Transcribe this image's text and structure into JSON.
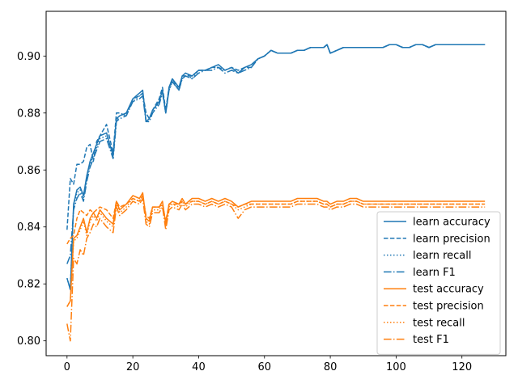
{
  "chart_data": {
    "type": "line",
    "title": "",
    "xlabel": "",
    "ylabel": "",
    "xlim": [
      -6.35,
      133.35
    ],
    "ylim": [
      0.7948,
      0.9157
    ],
    "xticks": [
      0,
      20,
      40,
      60,
      80,
      100,
      120
    ],
    "yticks": [
      0.8,
      0.82,
      0.84,
      0.86,
      0.88,
      0.9
    ],
    "xtick_labels": [
      "0",
      "20",
      "40",
      "60",
      "80",
      "100",
      "120"
    ],
    "ytick_labels": [
      "0.80",
      "0.82",
      "0.84",
      "0.86",
      "0.88",
      "0.90"
    ],
    "grid": false,
    "legend_position": "lower right",
    "x": [
      0,
      1,
      2,
      3,
      4,
      5,
      6,
      7,
      8,
      9,
      10,
      12,
      14,
      15,
      16,
      18,
      20,
      22,
      23,
      24,
      25,
      26,
      28,
      29,
      30,
      31,
      32,
      34,
      35,
      36,
      38,
      40,
      42,
      44,
      46,
      48,
      50,
      52,
      54,
      56,
      58,
      60,
      62,
      64,
      66,
      68,
      70,
      72,
      74,
      76,
      78,
      79,
      80,
      82,
      84,
      86,
      88,
      90,
      92,
      94,
      96,
      98,
      100,
      102,
      104,
      106,
      108,
      110,
      112,
      114,
      116,
      118,
      120,
      122,
      124,
      126,
      127
    ],
    "series": [
      {
        "name": "learn accuracy",
        "color": "#1f77b4",
        "dash": "solid",
        "values": [
          0.822,
          0.818,
          0.848,
          0.853,
          0.854,
          0.851,
          0.858,
          0.863,
          0.866,
          0.869,
          0.872,
          0.873,
          0.865,
          0.878,
          0.879,
          0.88,
          0.885,
          0.887,
          0.888,
          0.877,
          0.878,
          0.881,
          0.884,
          0.888,
          0.88,
          0.889,
          0.892,
          0.889,
          0.893,
          0.894,
          0.893,
          0.895,
          0.895,
          0.896,
          0.897,
          0.895,
          0.896,
          0.894,
          0.896,
          0.897,
          0.899,
          0.9,
          0.902,
          0.901,
          0.901,
          0.901,
          0.902,
          0.902,
          0.903,
          0.903,
          0.903,
          0.904,
          0.901,
          0.902,
          0.903,
          0.903,
          0.903,
          0.903,
          0.903,
          0.903,
          0.903,
          0.904,
          0.904,
          0.903,
          0.903,
          0.904,
          0.904,
          0.903,
          0.904,
          0.904,
          0.904,
          0.904,
          0.904,
          0.904,
          0.904,
          0.904,
          0.904
        ]
      },
      {
        "name": "learn precision",
        "color": "#1f77b4",
        "dash": "dashed",
        "values": [
          0.839,
          0.857,
          0.855,
          0.862,
          0.862,
          0.863,
          0.868,
          0.869,
          0.863,
          0.87,
          0.872,
          0.876,
          0.866,
          0.88,
          0.88,
          0.879,
          0.885,
          0.886,
          0.887,
          0.88,
          0.878,
          0.881,
          0.885,
          0.889,
          0.881,
          0.889,
          0.892,
          0.888,
          0.893,
          0.893,
          0.893,
          0.895,
          0.895,
          0.896,
          0.896,
          0.895,
          0.896,
          0.895,
          0.896,
          0.896,
          0.899,
          0.9,
          0.902,
          0.901,
          0.901,
          0.901,
          0.902,
          0.902,
          0.903,
          0.903,
          0.903,
          0.904,
          0.901,
          0.902,
          0.903,
          0.903,
          0.903,
          0.903,
          0.903,
          0.903,
          0.903,
          0.904,
          0.904,
          0.903,
          0.903,
          0.904,
          0.904,
          0.903,
          0.904,
          0.904,
          0.904,
          0.904,
          0.904,
          0.904,
          0.904,
          0.904,
          0.904
        ]
      },
      {
        "name": "learn recall",
        "color": "#1f77b4",
        "dash": "dotted",
        "values": [
          0.822,
          0.818,
          0.847,
          0.852,
          0.853,
          0.85,
          0.857,
          0.862,
          0.865,
          0.868,
          0.871,
          0.872,
          0.864,
          0.877,
          0.879,
          0.88,
          0.884,
          0.886,
          0.887,
          0.877,
          0.877,
          0.88,
          0.884,
          0.888,
          0.88,
          0.888,
          0.891,
          0.888,
          0.892,
          0.894,
          0.892,
          0.895,
          0.895,
          0.896,
          0.896,
          0.895,
          0.896,
          0.894,
          0.896,
          0.896,
          0.899,
          0.9,
          0.902,
          0.901,
          0.901,
          0.901,
          0.902,
          0.902,
          0.903,
          0.903,
          0.903,
          0.904,
          0.901,
          0.902,
          0.903,
          0.903,
          0.903,
          0.903,
          0.903,
          0.903,
          0.903,
          0.904,
          0.904,
          0.903,
          0.903,
          0.904,
          0.904,
          0.903,
          0.904,
          0.904,
          0.904,
          0.904,
          0.904,
          0.904,
          0.904,
          0.904,
          0.904
        ]
      },
      {
        "name": "learn F1",
        "color": "#1f77b4",
        "dash": "dashdot",
        "values": [
          0.827,
          0.83,
          0.846,
          0.85,
          0.852,
          0.849,
          0.856,
          0.861,
          0.864,
          0.867,
          0.87,
          0.871,
          0.864,
          0.877,
          0.878,
          0.879,
          0.884,
          0.885,
          0.886,
          0.877,
          0.877,
          0.88,
          0.883,
          0.887,
          0.88,
          0.888,
          0.891,
          0.888,
          0.892,
          0.893,
          0.892,
          0.894,
          0.895,
          0.895,
          0.896,
          0.894,
          0.895,
          0.894,
          0.895,
          0.896,
          0.899,
          0.9,
          0.902,
          0.901,
          0.901,
          0.901,
          0.902,
          0.902,
          0.903,
          0.903,
          0.903,
          0.904,
          0.901,
          0.902,
          0.903,
          0.903,
          0.903,
          0.903,
          0.903,
          0.903,
          0.903,
          0.904,
          0.904,
          0.903,
          0.903,
          0.904,
          0.904,
          0.903,
          0.904,
          0.904,
          0.904,
          0.904,
          0.904,
          0.904,
          0.904,
          0.904,
          0.904
        ]
      },
      {
        "name": "test accuracy",
        "color": "#ff7f0e",
        "dash": "solid",
        "values": [
          0.812,
          0.814,
          0.836,
          0.837,
          0.84,
          0.843,
          0.838,
          0.843,
          0.845,
          0.843,
          0.846,
          0.843,
          0.841,
          0.849,
          0.846,
          0.848,
          0.851,
          0.85,
          0.852,
          0.843,
          0.842,
          0.847,
          0.847,
          0.849,
          0.841,
          0.848,
          0.849,
          0.848,
          0.85,
          0.848,
          0.85,
          0.85,
          0.849,
          0.85,
          0.849,
          0.85,
          0.849,
          0.847,
          0.848,
          0.849,
          0.849,
          0.849,
          0.849,
          0.849,
          0.849,
          0.849,
          0.85,
          0.85,
          0.85,
          0.85,
          0.849,
          0.849,
          0.848,
          0.849,
          0.849,
          0.85,
          0.85,
          0.849,
          0.849,
          0.849,
          0.849,
          0.849,
          0.849,
          0.849,
          0.849,
          0.849,
          0.849,
          0.849,
          0.849,
          0.849,
          0.849,
          0.849,
          0.849,
          0.849,
          0.849,
          0.849,
          0.849
        ]
      },
      {
        "name": "test precision",
        "color": "#ff7f0e",
        "dash": "dashed",
        "values": [
          0.834,
          0.836,
          0.837,
          0.843,
          0.846,
          0.845,
          0.844,
          0.846,
          0.845,
          0.846,
          0.847,
          0.846,
          0.843,
          0.849,
          0.847,
          0.848,
          0.85,
          0.849,
          0.851,
          0.844,
          0.843,
          0.847,
          0.847,
          0.848,
          0.842,
          0.848,
          0.848,
          0.848,
          0.849,
          0.848,
          0.849,
          0.849,
          0.848,
          0.849,
          0.848,
          0.849,
          0.848,
          0.847,
          0.848,
          0.848,
          0.848,
          0.848,
          0.848,
          0.848,
          0.848,
          0.848,
          0.849,
          0.849,
          0.849,
          0.849,
          0.848,
          0.848,
          0.847,
          0.848,
          0.848,
          0.849,
          0.849,
          0.848,
          0.848,
          0.848,
          0.848,
          0.848,
          0.848,
          0.848,
          0.848,
          0.848,
          0.848,
          0.848,
          0.848,
          0.848,
          0.848,
          0.848,
          0.848,
          0.848,
          0.848,
          0.848,
          0.848
        ]
      },
      {
        "name": "test recall",
        "color": "#ff7f0e",
        "dash": "dotted",
        "values": [
          0.812,
          0.814,
          0.835,
          0.836,
          0.839,
          0.842,
          0.837,
          0.842,
          0.844,
          0.842,
          0.845,
          0.842,
          0.84,
          0.848,
          0.845,
          0.847,
          0.85,
          0.849,
          0.851,
          0.842,
          0.841,
          0.846,
          0.846,
          0.848,
          0.84,
          0.847,
          0.848,
          0.847,
          0.849,
          0.847,
          0.849,
          0.849,
          0.848,
          0.849,
          0.848,
          0.849,
          0.848,
          0.846,
          0.847,
          0.848,
          0.848,
          0.848,
          0.848,
          0.848,
          0.848,
          0.848,
          0.849,
          0.849,
          0.849,
          0.849,
          0.848,
          0.848,
          0.847,
          0.848,
          0.848,
          0.849,
          0.849,
          0.848,
          0.848,
          0.848,
          0.848,
          0.848,
          0.848,
          0.848,
          0.848,
          0.848,
          0.848,
          0.848,
          0.848,
          0.848,
          0.848,
          0.848,
          0.848,
          0.848,
          0.848,
          0.848,
          0.848
        ]
      },
      {
        "name": "test F1",
        "color": "#ff7f0e",
        "dash": "dashdot",
        "values": [
          0.806,
          0.8,
          0.829,
          0.827,
          0.832,
          0.83,
          0.836,
          0.838,
          0.841,
          0.84,
          0.843,
          0.84,
          0.838,
          0.847,
          0.844,
          0.846,
          0.849,
          0.848,
          0.85,
          0.841,
          0.84,
          0.845,
          0.845,
          0.847,
          0.839,
          0.846,
          0.847,
          0.846,
          0.848,
          0.846,
          0.848,
          0.848,
          0.847,
          0.848,
          0.847,
          0.848,
          0.847,
          0.843,
          0.846,
          0.847,
          0.847,
          0.847,
          0.847,
          0.847,
          0.847,
          0.847,
          0.848,
          0.848,
          0.848,
          0.848,
          0.847,
          0.847,
          0.846,
          0.847,
          0.847,
          0.848,
          0.848,
          0.847,
          0.847,
          0.847,
          0.847,
          0.847,
          0.847,
          0.847,
          0.847,
          0.847,
          0.847,
          0.847,
          0.847,
          0.847,
          0.847,
          0.847,
          0.847,
          0.847,
          0.847,
          0.847,
          0.847
        ]
      }
    ]
  }
}
